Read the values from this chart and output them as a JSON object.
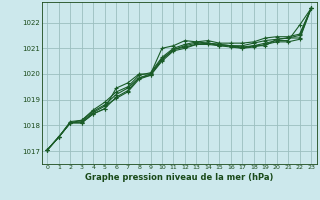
{
  "xlabel": "Graphe pression niveau de la mer (hPa)",
  "background_color": "#cce8ec",
  "grid_color": "#9bbfbf",
  "line_color": "#1a5c28",
  "ylim": [
    1016.5,
    1022.8
  ],
  "xlim": [
    -0.5,
    23.5
  ],
  "yticks": [
    1017,
    1018,
    1019,
    1020,
    1021,
    1022
  ],
  "xticks": [
    0,
    1,
    2,
    3,
    4,
    5,
    6,
    7,
    8,
    9,
    10,
    11,
    12,
    13,
    14,
    15,
    16,
    17,
    18,
    19,
    20,
    21,
    22,
    23
  ],
  "series": [
    [
      1017.05,
      1017.55,
      1018.1,
      1018.1,
      1018.45,
      1018.65,
      1019.45,
      1019.65,
      1020.0,
      1020.0,
      1021.0,
      1021.1,
      1021.3,
      1021.25,
      1021.2,
      1021.15,
      1021.1,
      1021.0,
      1021.1,
      1021.1,
      1021.35,
      1021.4,
      1021.4,
      1022.55
    ],
    [
      1017.05,
      1017.55,
      1018.1,
      1018.1,
      1018.45,
      1018.65,
      1019.1,
      1019.35,
      1019.85,
      1019.95,
      1020.55,
      1020.95,
      1021.05,
      1021.15,
      1021.2,
      1021.1,
      1021.1,
      1021.05,
      1021.1,
      1021.2,
      1021.3,
      1021.3,
      1021.9,
      1022.55
    ],
    [
      1017.05,
      1017.55,
      1018.1,
      1018.15,
      1018.5,
      1018.75,
      1019.05,
      1019.3,
      1019.8,
      1019.95,
      1020.5,
      1020.9,
      1021.0,
      1021.15,
      1021.15,
      1021.1,
      1021.05,
      1021.0,
      1021.05,
      1021.15,
      1021.25,
      1021.25,
      1021.35,
      1022.55
    ],
    [
      1017.05,
      1017.55,
      1018.1,
      1018.2,
      1018.55,
      1018.8,
      1019.2,
      1019.45,
      1019.85,
      1020.0,
      1020.6,
      1020.95,
      1021.1,
      1021.2,
      1021.2,
      1021.15,
      1021.1,
      1021.1,
      1021.2,
      1021.3,
      1021.35,
      1021.4,
      1021.5,
      1022.55
    ],
    [
      1017.05,
      1017.55,
      1018.15,
      1018.2,
      1018.6,
      1018.9,
      1019.3,
      1019.5,
      1019.95,
      1020.05,
      1020.65,
      1021.0,
      1021.15,
      1021.25,
      1021.3,
      1021.2,
      1021.2,
      1021.2,
      1021.25,
      1021.4,
      1021.45,
      1021.45,
      1021.55,
      1022.55
    ]
  ]
}
